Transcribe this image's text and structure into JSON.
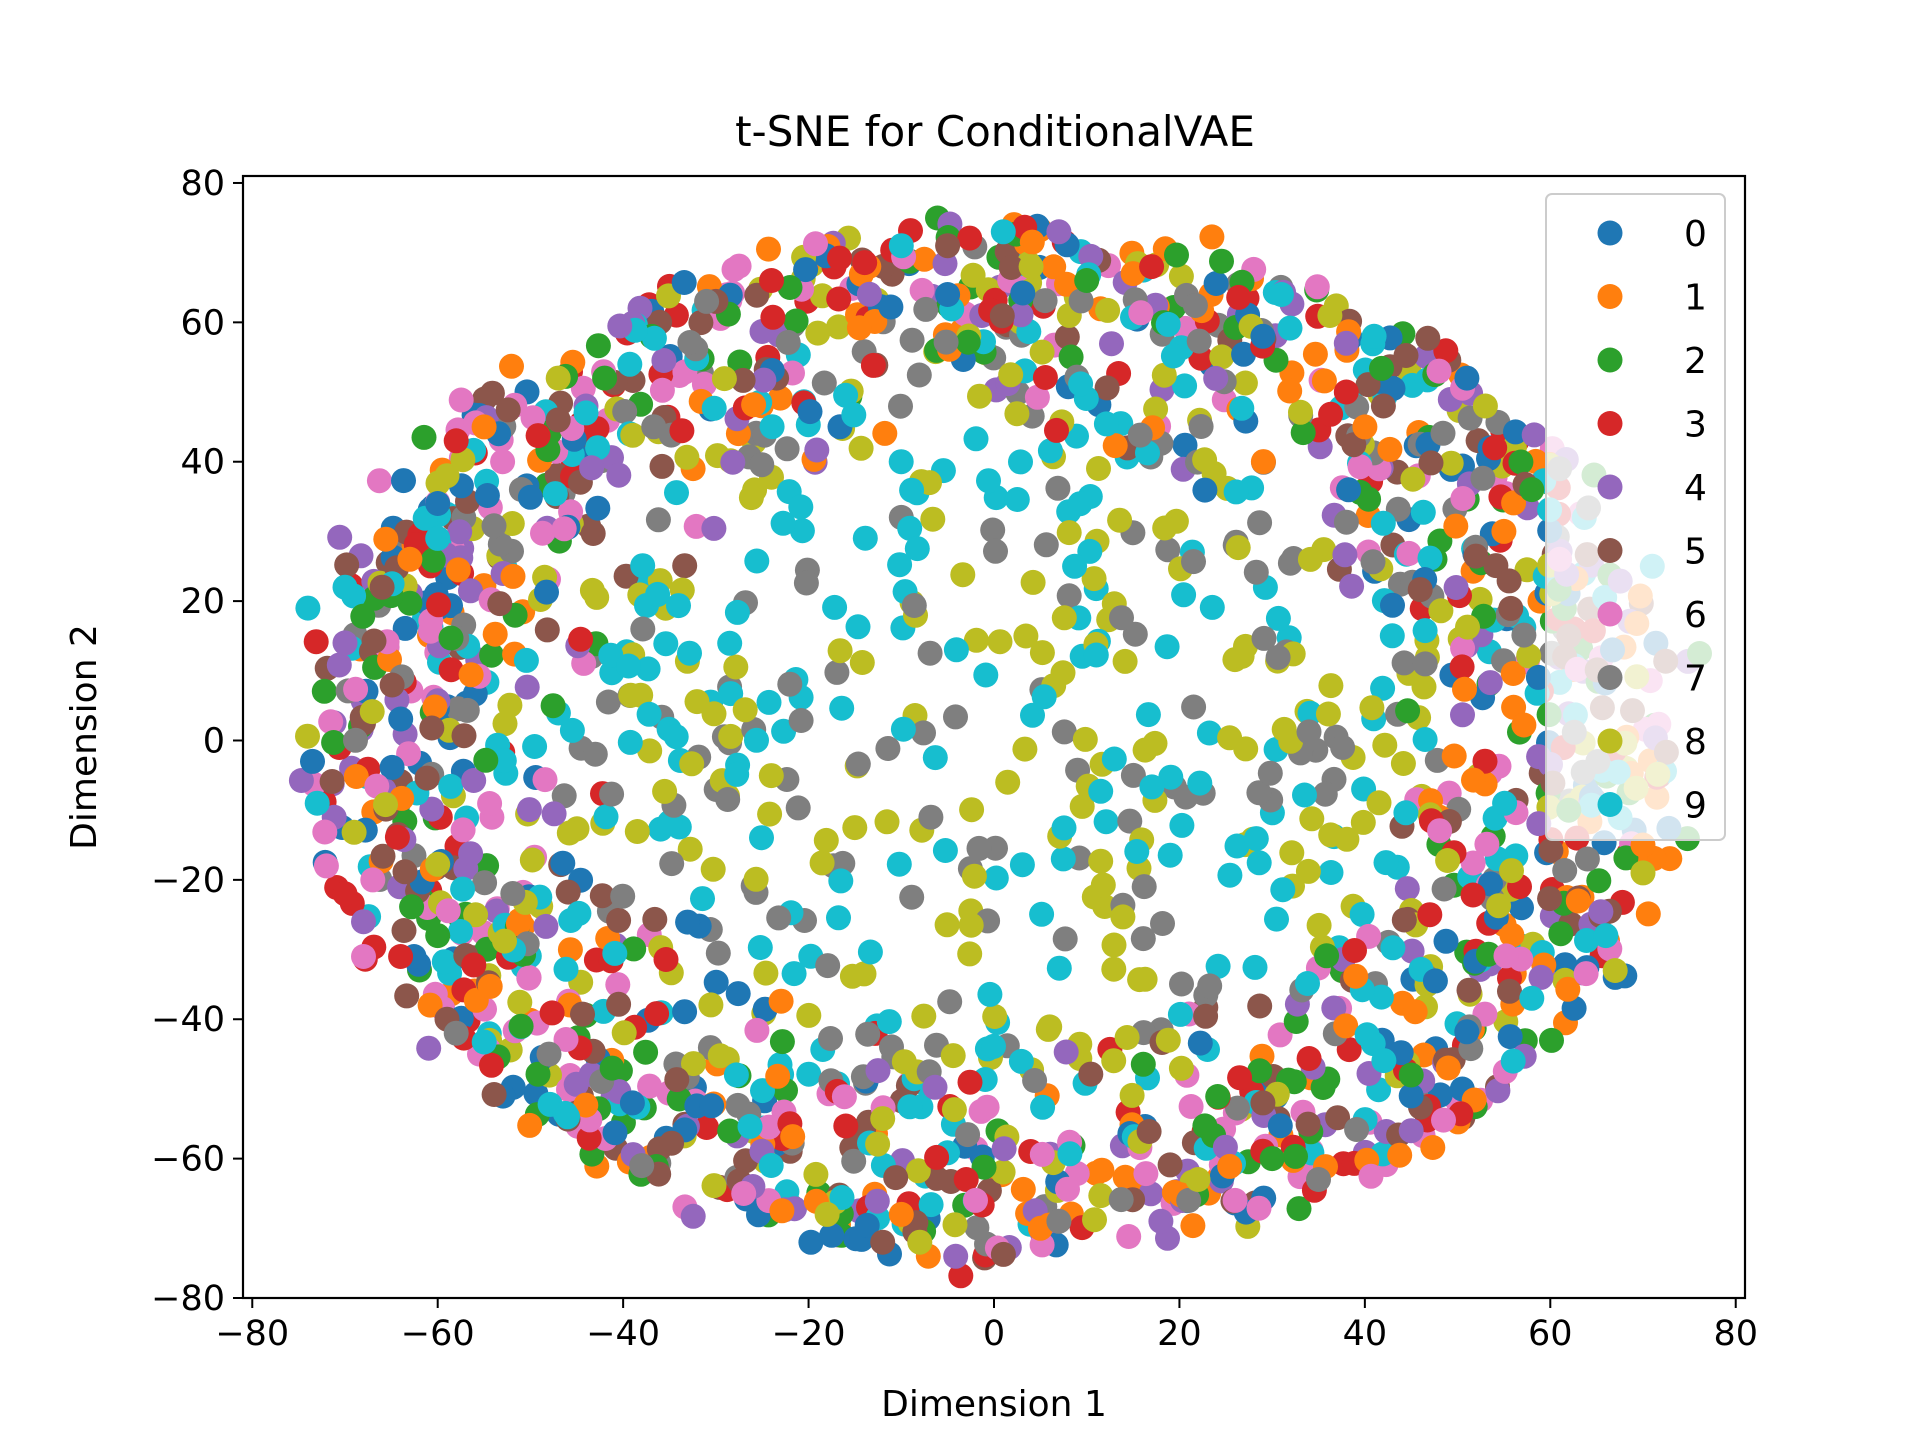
{
  "chart_data": {
    "type": "scatter",
    "title": "t-SNE for ConditionalVAE",
    "xlabel": "Dimension 1",
    "ylabel": "Dimension 2",
    "xlim": [
      -81,
      81
    ],
    "ylim": [
      -80,
      81
    ],
    "xticks": [
      -80,
      -60,
      -40,
      -20,
      0,
      20,
      40,
      60,
      80
    ],
    "yticks": [
      -80,
      -60,
      -40,
      -20,
      0,
      20,
      40,
      60,
      80
    ],
    "xtick_labels": [
      "−80",
      "−60",
      "−40",
      "−20",
      "0",
      "20",
      "40",
      "60",
      "80"
    ],
    "ytick_labels": [
      "−80",
      "−60",
      "−40",
      "−20",
      "0",
      "20",
      "40",
      "60",
      "80"
    ],
    "grid": false,
    "legend_position": "top-right",
    "cloud": {
      "center": [
        0,
        0
      ],
      "radius_x": 74,
      "radius_y": 74
    },
    "series": [
      {
        "name": "0",
        "color": "#1f77b4",
        "values": [
          [
            -73.5,
            -3
          ],
          [
            -17.5,
            -71
          ],
          [
            51,
            52
          ],
          [
            -39,
            -52
          ],
          [
            45,
            -51
          ],
          [
            67,
            -34
          ],
          [
            -5,
            64
          ],
          [
            29,
            58
          ],
          [
            -60,
            34
          ]
        ]
      },
      {
        "name": "1",
        "color": "#ff7f0e",
        "values": [
          [
            -55,
            45
          ],
          [
            49,
            -47
          ],
          [
            70,
            -15
          ],
          [
            5,
            -70
          ],
          [
            15,
            67
          ],
          [
            -63,
            26
          ],
          [
            40,
            45
          ],
          [
            -10,
            -68
          ],
          [
            55,
            30
          ]
        ]
      },
      {
        "name": "2",
        "color": "#2ca02c",
        "values": [
          [
            -22,
            65
          ],
          [
            58,
            36
          ],
          [
            -51,
            -41
          ],
          [
            10,
            66
          ],
          [
            45,
            -48
          ],
          [
            -60,
            -28
          ],
          [
            30,
            -60
          ],
          [
            -42,
            52
          ],
          [
            62,
            -10
          ]
        ]
      },
      {
        "name": "3",
        "color": "#d62728",
        "values": [
          [
            -58,
            43
          ],
          [
            17,
            68
          ],
          [
            -24,
            66
          ],
          [
            54,
            42
          ],
          [
            -64,
            -31
          ],
          [
            -3,
            -63
          ],
          [
            38,
            50
          ],
          [
            -70,
            -22
          ],
          [
            47,
            -25
          ]
        ]
      },
      {
        "name": "4",
        "color": "#9467bd",
        "values": [
          [
            7,
            73
          ],
          [
            -68,
            -26
          ],
          [
            45,
            -56
          ],
          [
            -26,
            -64
          ],
          [
            -70,
            14
          ],
          [
            38,
            57
          ],
          [
            -44,
            48
          ],
          [
            59,
            -34
          ],
          [
            18,
            -69
          ]
        ]
      },
      {
        "name": "5",
        "color": "#8c564b",
        "values": [
          [
            -5,
            71
          ],
          [
            -12,
            -72
          ],
          [
            -66,
            22
          ],
          [
            62,
            15
          ],
          [
            42,
            48
          ],
          [
            -30,
            63
          ],
          [
            -59,
            -40
          ],
          [
            29,
            -52
          ],
          [
            -47,
            46
          ]
        ]
      },
      {
        "name": "6",
        "color": "#e377c2",
        "values": [
          [
            -68,
            -31
          ],
          [
            -72,
            -18
          ],
          [
            -27,
            -65
          ],
          [
            26,
            -66
          ],
          [
            -67,
            -20
          ],
          [
            48,
            53
          ],
          [
            -2,
            -66
          ],
          [
            61,
            26
          ],
          [
            -53,
            40
          ]
        ]
      },
      {
        "name": "7",
        "color": "#7f7f7f",
        "values": [
          [
            -58,
            -42
          ],
          [
            21,
            -66
          ],
          [
            -38,
            -61
          ],
          [
            35,
            -63
          ],
          [
            61,
            39
          ],
          [
            -31,
            63
          ],
          [
            64,
            -17
          ],
          [
            -48,
            -45
          ],
          [
            7,
            -69
          ]
        ]
      },
      {
        "name": "8",
        "color": "#bcbd22",
        "values": [
          [
            -8,
            -72
          ],
          [
            -18,
            -68
          ],
          [
            70,
            -19
          ],
          [
            4,
            68
          ],
          [
            -47,
            52
          ],
          [
            67,
            -33
          ],
          [
            53,
            48
          ],
          [
            -59,
            38
          ],
          [
            22,
            -63
          ]
        ]
      },
      {
        "name": "9",
        "color": "#17becf",
        "values": [
          [
            -74,
            19
          ],
          [
            -70,
            22
          ],
          [
            -73,
            -9
          ],
          [
            1,
            73
          ],
          [
            71,
            25
          ],
          [
            -10,
            71
          ],
          [
            41,
            58
          ],
          [
            -46,
            -54
          ],
          [
            56,
            -46
          ],
          [
            31,
            64
          ],
          [
            66,
            -28
          ],
          [
            -60,
            29
          ],
          [
            58,
            -37
          ],
          [
            -44,
            47
          ]
        ]
      }
    ]
  }
}
